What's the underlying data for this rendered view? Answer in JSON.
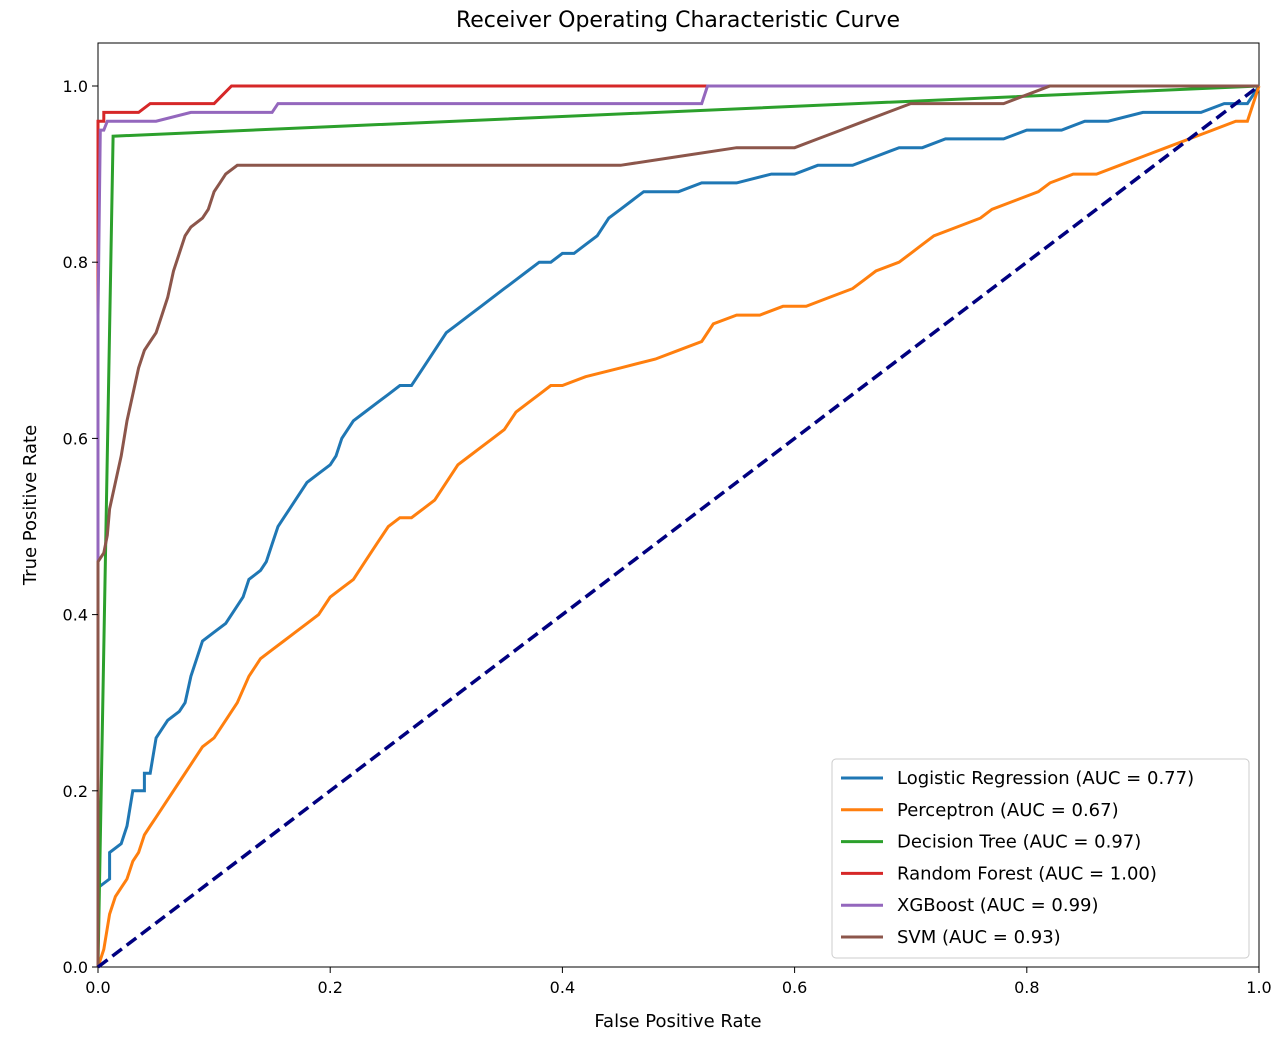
{
  "chart_data": {
    "type": "line",
    "title": "Receiver Operating Characteristic Curve",
    "xlabel": "False Positive Rate",
    "ylabel": "True Positive Rate",
    "xlim": [
      0.0,
      1.0
    ],
    "ylim": [
      0.0,
      1.05
    ],
    "xticks": [
      "0.0",
      "0.2",
      "0.4",
      "0.6",
      "0.8",
      "1.0"
    ],
    "yticks": [
      "0.0",
      "0.2",
      "0.4",
      "0.6",
      "0.8",
      "1.0"
    ],
    "grid": false,
    "legend_position": "lower right",
    "series": [
      {
        "name": "Logistic Regression (AUC = 0.77)",
        "color": "#1f77b4",
        "points": [
          [
            0.0,
            0.0
          ],
          [
            0.0,
            0.09
          ],
          [
            0.01,
            0.1
          ],
          [
            0.01,
            0.13
          ],
          [
            0.02,
            0.14
          ],
          [
            0.025,
            0.16
          ],
          [
            0.03,
            0.2
          ],
          [
            0.04,
            0.2
          ],
          [
            0.04,
            0.22
          ],
          [
            0.045,
            0.22
          ],
          [
            0.05,
            0.26
          ],
          [
            0.055,
            0.27
          ],
          [
            0.06,
            0.28
          ],
          [
            0.07,
            0.29
          ],
          [
            0.075,
            0.3
          ],
          [
            0.08,
            0.33
          ],
          [
            0.085,
            0.35
          ],
          [
            0.09,
            0.37
          ],
          [
            0.1,
            0.38
          ],
          [
            0.11,
            0.39
          ],
          [
            0.12,
            0.41
          ],
          [
            0.125,
            0.42
          ],
          [
            0.13,
            0.44
          ],
          [
            0.14,
            0.45
          ],
          [
            0.145,
            0.46
          ],
          [
            0.15,
            0.48
          ],
          [
            0.155,
            0.5
          ],
          [
            0.16,
            0.51
          ],
          [
            0.165,
            0.52
          ],
          [
            0.17,
            0.53
          ],
          [
            0.18,
            0.55
          ],
          [
            0.19,
            0.56
          ],
          [
            0.2,
            0.57
          ],
          [
            0.205,
            0.58
          ],
          [
            0.21,
            0.6
          ],
          [
            0.22,
            0.62
          ],
          [
            0.23,
            0.63
          ],
          [
            0.24,
            0.64
          ],
          [
            0.25,
            0.65
          ],
          [
            0.26,
            0.66
          ],
          [
            0.27,
            0.66
          ],
          [
            0.28,
            0.68
          ],
          [
            0.29,
            0.7
          ],
          [
            0.3,
            0.72
          ],
          [
            0.31,
            0.73
          ],
          [
            0.32,
            0.74
          ],
          [
            0.33,
            0.75
          ],
          [
            0.34,
            0.76
          ],
          [
            0.35,
            0.77
          ],
          [
            0.36,
            0.78
          ],
          [
            0.37,
            0.79
          ],
          [
            0.38,
            0.8
          ],
          [
            0.39,
            0.8
          ],
          [
            0.4,
            0.81
          ],
          [
            0.41,
            0.81
          ],
          [
            0.42,
            0.82
          ],
          [
            0.43,
            0.83
          ],
          [
            0.44,
            0.85
          ],
          [
            0.45,
            0.86
          ],
          [
            0.46,
            0.87
          ],
          [
            0.47,
            0.88
          ],
          [
            0.5,
            0.88
          ],
          [
            0.52,
            0.89
          ],
          [
            0.55,
            0.89
          ],
          [
            0.58,
            0.9
          ],
          [
            0.6,
            0.9
          ],
          [
            0.62,
            0.91
          ],
          [
            0.65,
            0.91
          ],
          [
            0.67,
            0.92
          ],
          [
            0.69,
            0.93
          ],
          [
            0.71,
            0.93
          ],
          [
            0.73,
            0.94
          ],
          [
            0.78,
            0.94
          ],
          [
            0.8,
            0.95
          ],
          [
            0.83,
            0.95
          ],
          [
            0.85,
            0.96
          ],
          [
            0.87,
            0.96
          ],
          [
            0.9,
            0.97
          ],
          [
            0.92,
            0.97
          ],
          [
            0.95,
            0.97
          ],
          [
            0.97,
            0.98
          ],
          [
            0.99,
            0.98
          ],
          [
            1.0,
            1.0
          ]
        ]
      },
      {
        "name": "Perceptron (AUC = 0.67)",
        "color": "#ff7f0e",
        "points": [
          [
            0.0,
            0.0
          ],
          [
            0.005,
            0.02
          ],
          [
            0.01,
            0.06
          ],
          [
            0.015,
            0.08
          ],
          [
            0.02,
            0.09
          ],
          [
            0.025,
            0.1
          ],
          [
            0.03,
            0.12
          ],
          [
            0.035,
            0.13
          ],
          [
            0.04,
            0.15
          ],
          [
            0.045,
            0.16
          ],
          [
            0.05,
            0.17
          ],
          [
            0.06,
            0.19
          ],
          [
            0.07,
            0.21
          ],
          [
            0.08,
            0.23
          ],
          [
            0.09,
            0.25
          ],
          [
            0.1,
            0.26
          ],
          [
            0.11,
            0.28
          ],
          [
            0.12,
            0.3
          ],
          [
            0.13,
            0.33
          ],
          [
            0.14,
            0.35
          ],
          [
            0.15,
            0.36
          ],
          [
            0.16,
            0.37
          ],
          [
            0.17,
            0.38
          ],
          [
            0.18,
            0.39
          ],
          [
            0.19,
            0.4
          ],
          [
            0.2,
            0.42
          ],
          [
            0.21,
            0.43
          ],
          [
            0.22,
            0.44
          ],
          [
            0.23,
            0.46
          ],
          [
            0.24,
            0.48
          ],
          [
            0.25,
            0.5
          ],
          [
            0.26,
            0.51
          ],
          [
            0.27,
            0.51
          ],
          [
            0.28,
            0.52
          ],
          [
            0.29,
            0.53
          ],
          [
            0.3,
            0.55
          ],
          [
            0.31,
            0.57
          ],
          [
            0.32,
            0.58
          ],
          [
            0.33,
            0.59
          ],
          [
            0.34,
            0.6
          ],
          [
            0.35,
            0.61
          ],
          [
            0.36,
            0.63
          ],
          [
            0.37,
            0.64
          ],
          [
            0.38,
            0.65
          ],
          [
            0.39,
            0.66
          ],
          [
            0.4,
            0.66
          ],
          [
            0.42,
            0.67
          ],
          [
            0.45,
            0.68
          ],
          [
            0.48,
            0.69
          ],
          [
            0.5,
            0.7
          ],
          [
            0.52,
            0.71
          ],
          [
            0.53,
            0.73
          ],
          [
            0.55,
            0.74
          ],
          [
            0.57,
            0.74
          ],
          [
            0.59,
            0.75
          ],
          [
            0.61,
            0.75
          ],
          [
            0.63,
            0.76
          ],
          [
            0.65,
            0.77
          ],
          [
            0.66,
            0.78
          ],
          [
            0.67,
            0.79
          ],
          [
            0.69,
            0.8
          ],
          [
            0.7,
            0.81
          ],
          [
            0.71,
            0.82
          ],
          [
            0.72,
            0.83
          ],
          [
            0.74,
            0.84
          ],
          [
            0.76,
            0.85
          ],
          [
            0.77,
            0.86
          ],
          [
            0.79,
            0.87
          ],
          [
            0.81,
            0.88
          ],
          [
            0.82,
            0.89
          ],
          [
            0.84,
            0.9
          ],
          [
            0.86,
            0.9
          ],
          [
            0.88,
            0.91
          ],
          [
            0.9,
            0.92
          ],
          [
            0.92,
            0.93
          ],
          [
            0.94,
            0.94
          ],
          [
            0.96,
            0.95
          ],
          [
            0.98,
            0.96
          ],
          [
            0.99,
            0.96
          ],
          [
            1.0,
            1.0
          ]
        ]
      },
      {
        "name": "Decision Tree (AUC = 0.97)",
        "color": "#2ca02c",
        "points": [
          [
            0.0,
            0.0
          ],
          [
            0.013,
            0.943
          ],
          [
            1.0,
            1.0
          ]
        ]
      },
      {
        "name": "Random Forest (AUC = 1.00)",
        "color": "#d62728",
        "points": [
          [
            0.0,
            0.0
          ],
          [
            0.0,
            0.96
          ],
          [
            0.005,
            0.96
          ],
          [
            0.005,
            0.97
          ],
          [
            0.02,
            0.97
          ],
          [
            0.035,
            0.97
          ],
          [
            0.045,
            0.98
          ],
          [
            0.1,
            0.98
          ],
          [
            0.115,
            1.0
          ],
          [
            1.0,
            1.0
          ]
        ]
      },
      {
        "name": "XGBoost (AUC = 0.99)",
        "color": "#9467bd",
        "points": [
          [
            0.0,
            0.0
          ],
          [
            0.0,
            0.74
          ],
          [
            0.002,
            0.95
          ],
          [
            0.005,
            0.95
          ],
          [
            0.008,
            0.96
          ],
          [
            0.05,
            0.96
          ],
          [
            0.08,
            0.97
          ],
          [
            0.15,
            0.97
          ],
          [
            0.155,
            0.98
          ],
          [
            0.52,
            0.98
          ],
          [
            0.525,
            1.0
          ],
          [
            1.0,
            1.0
          ]
        ]
      },
      {
        "name": "SVM (AUC = 0.93)",
        "color": "#8c564b",
        "points": [
          [
            0.0,
            0.0
          ],
          [
            0.0,
            0.46
          ],
          [
            0.005,
            0.47
          ],
          [
            0.008,
            0.49
          ],
          [
            0.01,
            0.52
          ],
          [
            0.015,
            0.55
          ],
          [
            0.02,
            0.58
          ],
          [
            0.025,
            0.62
          ],
          [
            0.03,
            0.65
          ],
          [
            0.035,
            0.68
          ],
          [
            0.04,
            0.7
          ],
          [
            0.045,
            0.71
          ],
          [
            0.05,
            0.72
          ],
          [
            0.055,
            0.74
          ],
          [
            0.06,
            0.76
          ],
          [
            0.065,
            0.79
          ],
          [
            0.07,
            0.81
          ],
          [
            0.075,
            0.83
          ],
          [
            0.08,
            0.84
          ],
          [
            0.09,
            0.85
          ],
          [
            0.095,
            0.86
          ],
          [
            0.1,
            0.88
          ],
          [
            0.105,
            0.89
          ],
          [
            0.11,
            0.9
          ],
          [
            0.12,
            0.91
          ],
          [
            0.13,
            0.91
          ],
          [
            0.14,
            0.91
          ],
          [
            0.45,
            0.91
          ],
          [
            0.5,
            0.92
          ],
          [
            0.55,
            0.93
          ],
          [
            0.6,
            0.93
          ],
          [
            0.62,
            0.94
          ],
          [
            0.64,
            0.95
          ],
          [
            0.66,
            0.96
          ],
          [
            0.68,
            0.97
          ],
          [
            0.7,
            0.98
          ],
          [
            0.78,
            0.98
          ],
          [
            0.8,
            0.99
          ],
          [
            0.82,
            1.0
          ],
          [
            1.0,
            1.0
          ]
        ]
      }
    ],
    "reference_line": {
      "color": "#000080",
      "style": "dashed",
      "points": [
        [
          0.0,
          0.0
        ],
        [
          1.0,
          1.0
        ]
      ]
    }
  }
}
